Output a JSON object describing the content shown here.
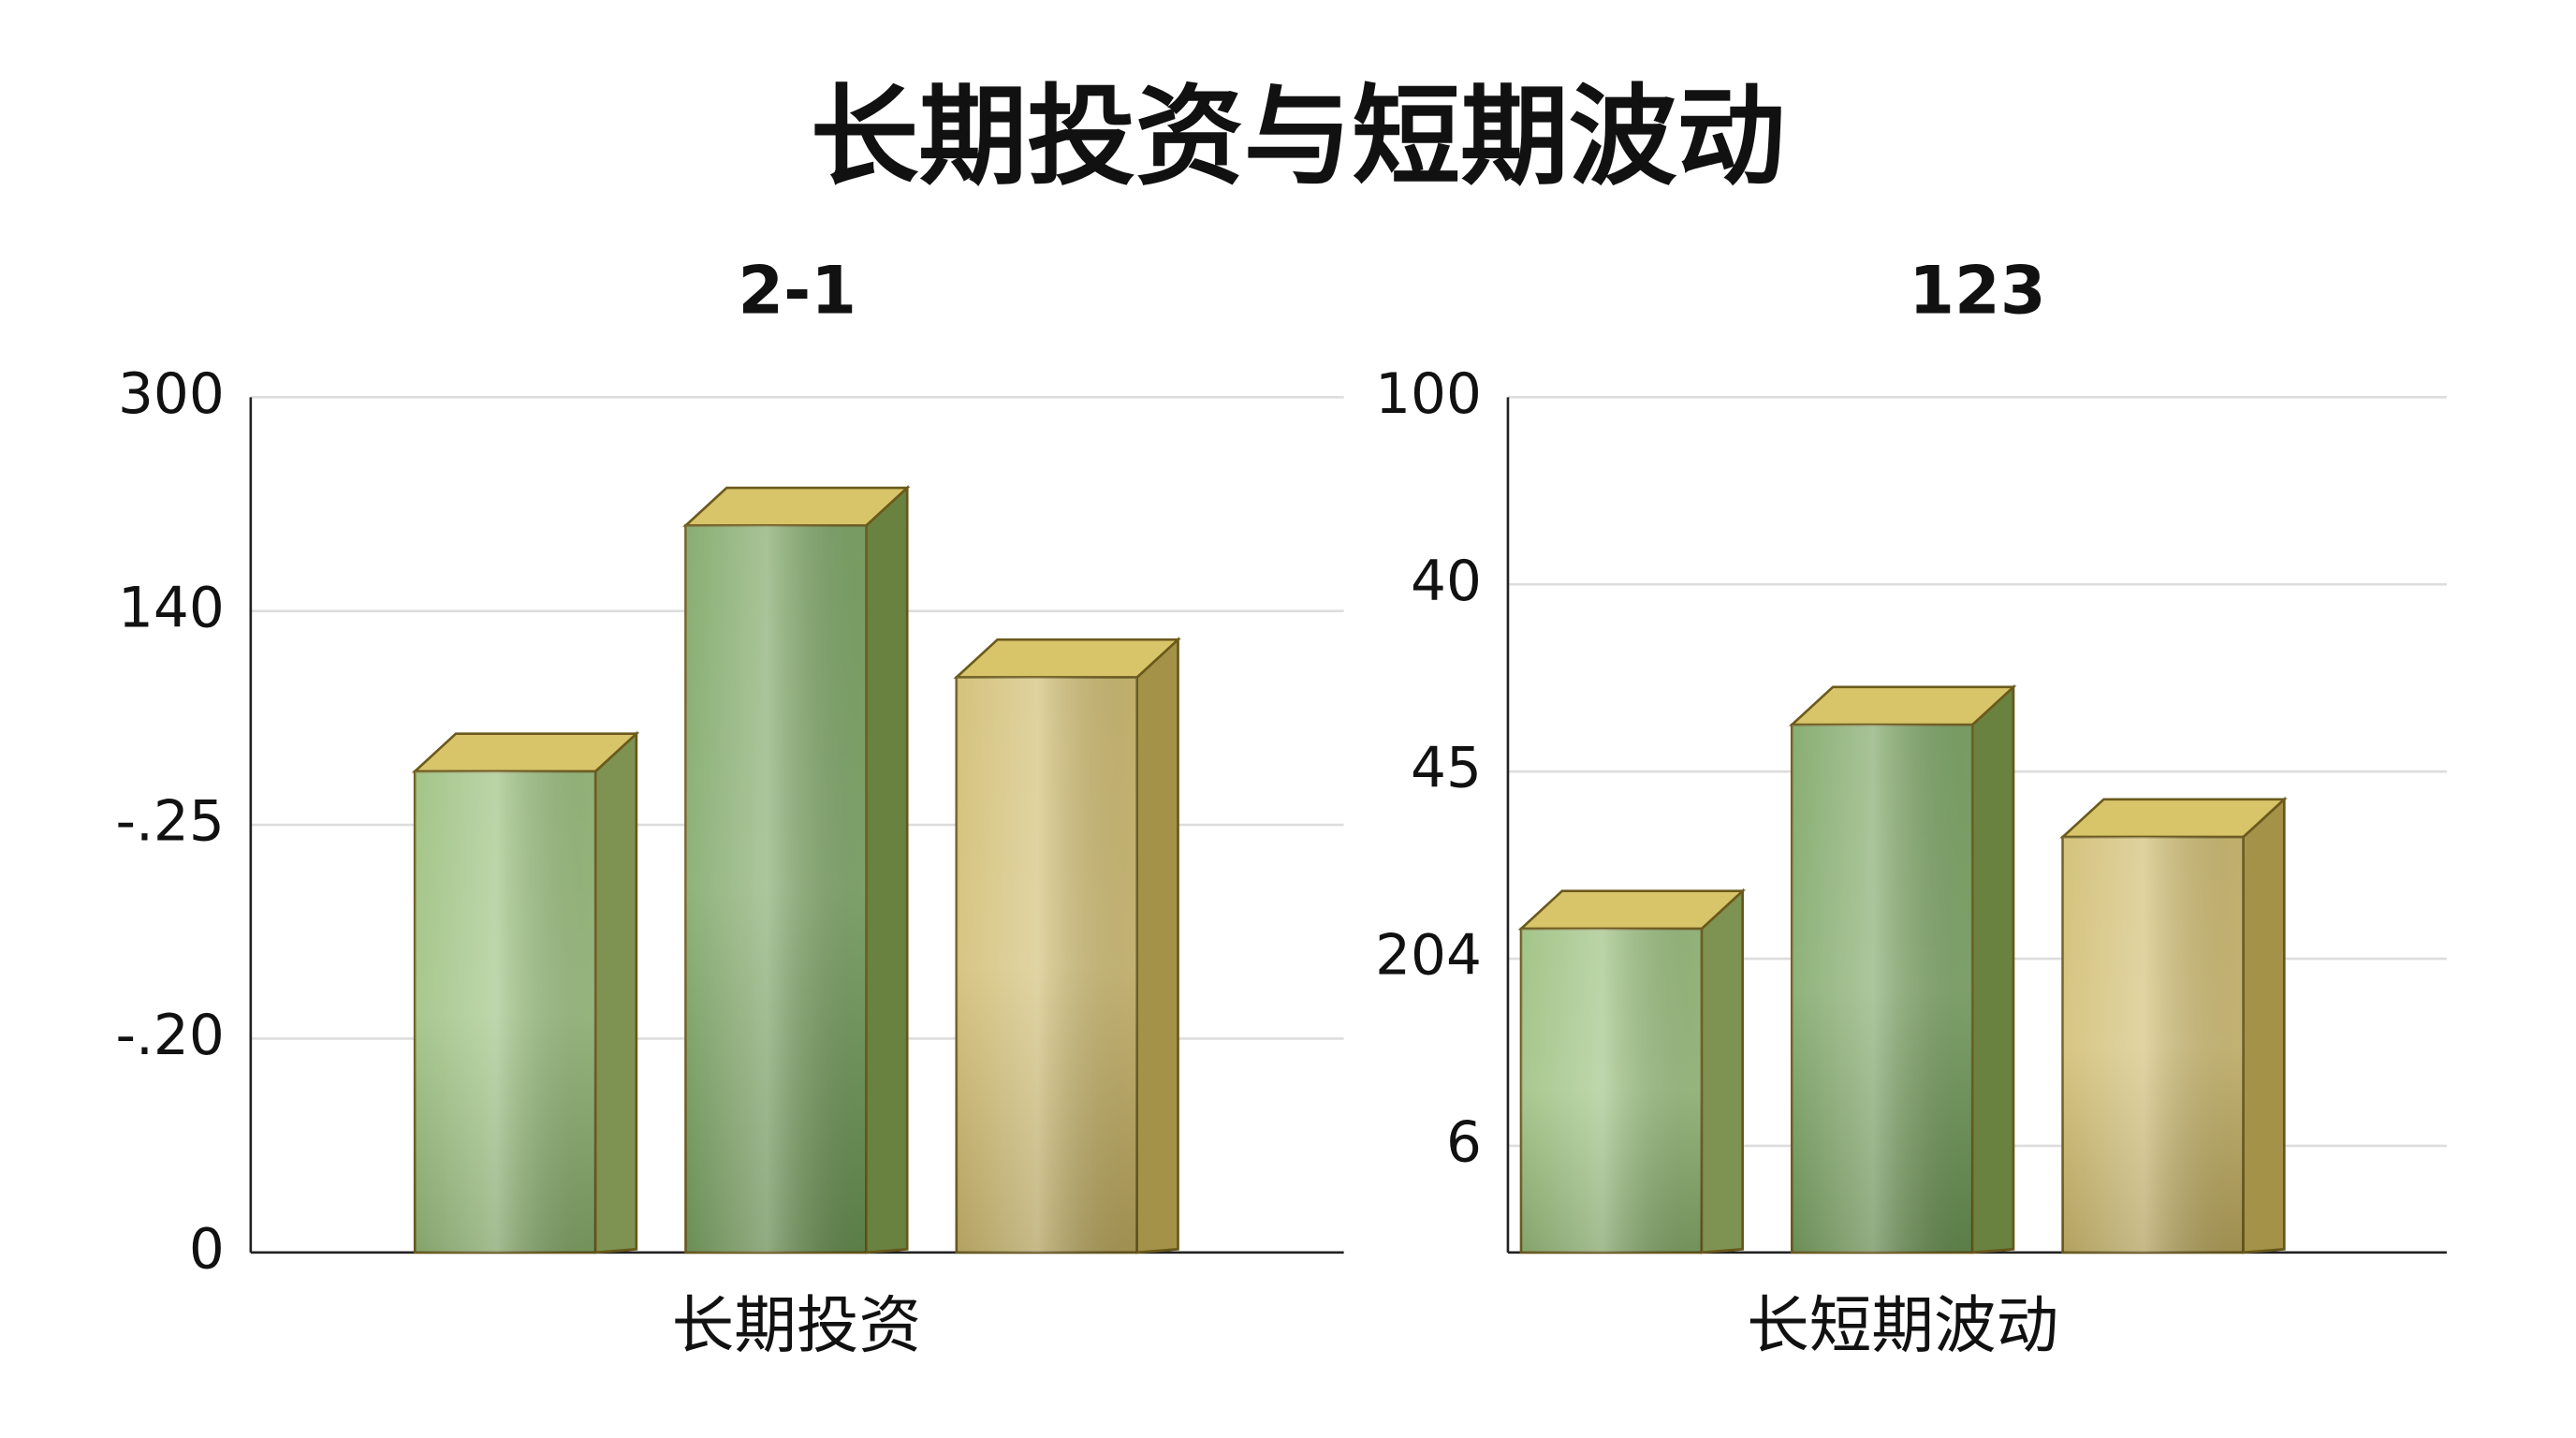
{
  "title": "长期投资与短期波动",
  "chart_data": [
    {
      "type": "bar3d",
      "title": "2-1",
      "categories": [
        "长期投资"
      ],
      "series": [
        {
          "color": "#93bb74",
          "values": [
            2.25
          ]
        },
        {
          "color": "#74a05a",
          "values": [
            3.4
          ]
        },
        {
          "color": "#cdb866",
          "values": [
            2.69
          ]
        }
      ],
      "ylim": [
        0,
        4
      ],
      "yticks": [
        0,
        {
          "value": 1,
          "label": "-.20"
        },
        {
          "value": 2,
          "label": "-.25"
        },
        {
          "value": 3,
          "label": "140"
        },
        {
          "value": 4,
          "label": "300"
        }
      ],
      "grid": true
    },
    {
      "type": "bar3d",
      "title": "123",
      "categories": [
        "长短期波动"
      ],
      "series": [
        {
          "color": "#93bb74",
          "values": [
            1.73
          ]
        },
        {
          "color": "#74a05a",
          "values": [
            2.82
          ]
        },
        {
          "color": "#cdb866",
          "values": [
            2.22
          ]
        }
      ],
      "ylim": [
        0,
        4.57
      ],
      "yticks": [
        {
          "value": 0.57,
          "label": "6"
        },
        {
          "value": 1.57,
          "label": "204"
        },
        {
          "value": 2.57,
          "label": "45"
        },
        {
          "value": 3.57,
          "label": "40"
        },
        {
          "value": 4.57,
          "label": "100"
        }
      ],
      "grid": true
    }
  ]
}
